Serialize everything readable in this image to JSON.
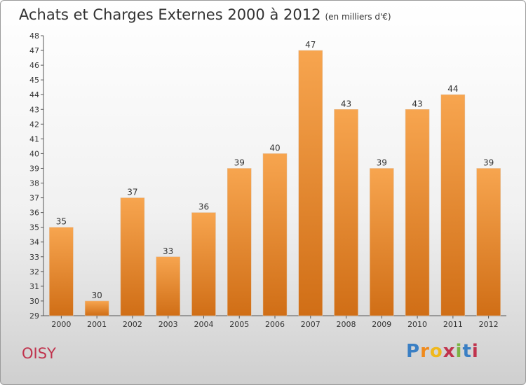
{
  "title": "Achats et Charges Externes 2000 à 2012",
  "unit": "(en milliers d'€)",
  "city": "OISY",
  "logo": [
    "P",
    "r",
    "o",
    "x",
    "i",
    "t",
    "i"
  ],
  "colors": {
    "bar": "#f0892a",
    "bar_light": "#f7a54f",
    "bar_dark": "#d06e16",
    "title": "#333333",
    "city": "#c0334d"
  },
  "chart_data": {
    "type": "bar",
    "categories": [
      "2000",
      "2001",
      "2002",
      "2003",
      "2004",
      "2005",
      "2006",
      "2007",
      "2008",
      "2009",
      "2010",
      "2011",
      "2012"
    ],
    "values": [
      35,
      30,
      37,
      33,
      36,
      39,
      40,
      47,
      43,
      39,
      43,
      44,
      39
    ],
    "ylim": [
      29,
      48
    ],
    "yticks": [
      29,
      30,
      31,
      32,
      33,
      34,
      35,
      36,
      37,
      38,
      39,
      40,
      41,
      42,
      43,
      44,
      45,
      46,
      47,
      48
    ],
    "grid": false,
    "legend": "none"
  }
}
